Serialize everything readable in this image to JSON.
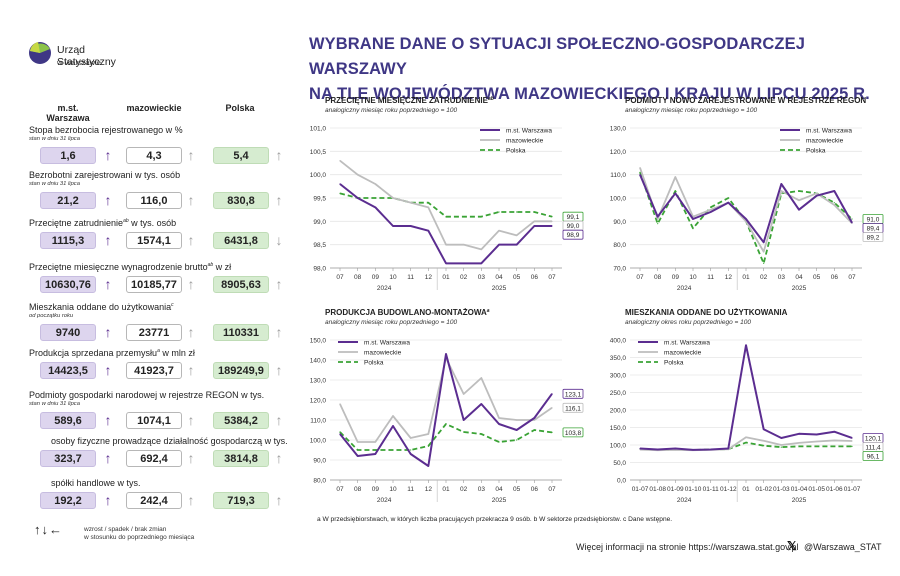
{
  "header": {
    "org_line1": "Urząd Statystyczny",
    "org_line2": "w Warszawie",
    "title_line1": "WYBRANE DANE O SYTUACJI SPOŁECZNO-GOSPODARCZEJ WARSZAWY",
    "title_line2": "NA TLE WOJEWÓDZTWA MAZOWIECKIEGO I KRAJU W LIPCU 2025 R."
  },
  "table": {
    "columns": [
      "m.st. Warszawa",
      "mazowieckie",
      "Polska"
    ],
    "rows": [
      {
        "label": "Stopa bezrobocia rejestrowanego w %",
        "sub": "stan w dniu 31 lipca",
        "wa": "1,6",
        "maz": "4,3",
        "pl": "5,4",
        "arrows": [
          "up",
          "up",
          "up"
        ]
      },
      {
        "label": "Bezrobotni zarejestrowani w tys. osób",
        "sub": "stan w dniu 31 lipca",
        "wa": "21,2",
        "maz": "116,0",
        "pl": "830,8",
        "arrows": [
          "up",
          "up",
          "up"
        ]
      },
      {
        "label": "Przeciętne zatrudnienie",
        "sup": "ab",
        "label_tail": " w tys. osób",
        "sub": "",
        "wa": "1115,3",
        "maz": "1574,1",
        "pl": "6431,8",
        "arrows": [
          "up",
          "up",
          "down"
        ]
      },
      {
        "label": "Przeciętne miesięczne wynagrodzenie brutto",
        "sup": "ab",
        "label_tail": " w zł",
        "sub": "",
        "wa": "10630,76",
        "maz": "10185,77",
        "pl": "8905,63",
        "arrows": [
          "up",
          "up",
          "up"
        ]
      },
      {
        "label": "Mieszkania oddane do użytkowania",
        "sup": "c",
        "label_tail": "",
        "sub": "od początku roku",
        "wa": "9740",
        "maz": "23771",
        "pl": "110331",
        "arrows": [
          "up",
          "up",
          "up"
        ]
      },
      {
        "label": "Produkcja sprzedana przemysłu",
        "sup": "a",
        "label_tail": " w mln zł",
        "sub": "",
        "wa": "14423,5",
        "maz": "41923,7",
        "pl": "189249,9",
        "arrows": [
          "up",
          "up",
          "up"
        ]
      },
      {
        "label": "Podmioty gospodarki narodowej w rejestrze REGON w tys.",
        "sub": "stan w dniu 31 lipca",
        "wa": "589,6",
        "maz": "1074,1",
        "pl": "5384,2",
        "arrows": [
          "up",
          "up",
          "up"
        ]
      },
      {
        "label": "osoby fizyczne prowadzące działalność gospodarczą w tys.",
        "sub": "",
        "wa": "323,7",
        "maz": "692,4",
        "pl": "3814,8",
        "arrows": [
          "up",
          "up",
          "up"
        ]
      },
      {
        "label": "spółki handlowe w tys.",
        "sub": "",
        "wa": "192,2",
        "maz": "242,4",
        "pl": "719,3",
        "arrows": [
          "up",
          "up",
          "up"
        ]
      }
    ],
    "legend_arrows": "↑↓←",
    "legend_line1": "wzrost / spadek / brak zmian",
    "legend_line2": "w stosunku do poprzedniego miesiąca"
  },
  "footnote": "a W przedsiębiorstwach, w których liczba pracujących przekracza 9 osób.   b W sektorze przedsiębiorstw.   c Dane wstępne.",
  "footer": {
    "more_info": "Więcej informacji na stronie https://warszawa.stat.gov.pl",
    "x_icon": "x-logo",
    "x_handle": "@Warszawa_STAT"
  },
  "colors": {
    "warszawa": "#5b2d90",
    "mazowieckie": "#bdbdbd",
    "polska": "#3aa335",
    "title": "#3f3785"
  },
  "chart_data": [
    {
      "type": "line",
      "title": "PRZECIĘTNE MIESIĘCZNE ZATRUDNIENIE",
      "title_sup": "ab",
      "subtitle": "analogiczny miesiąc roku poprzedniego = 100",
      "x": [
        "07",
        "08",
        "09",
        "10",
        "11",
        "12",
        "01",
        "02",
        "03",
        "04",
        "05",
        "06",
        "07"
      ],
      "year_labels": [
        "2024",
        "2025"
      ],
      "ylim": [
        98.0,
        101.0
      ],
      "yticks": [
        "98,0",
        "98,5",
        "99,0",
        "99,5",
        "100,0",
        "100,5",
        "101,0"
      ],
      "ytick_values": [
        98.0,
        98.5,
        99.0,
        99.5,
        100.0,
        100.5,
        101.0
      ],
      "legend_position": "top-right",
      "series": [
        {
          "name": "m.st. Warszawa",
          "values": [
            99.8,
            99.5,
            99.3,
            98.9,
            98.9,
            98.8,
            98.1,
            98.1,
            98.1,
            98.5,
            98.5,
            98.9,
            98.9
          ]
        },
        {
          "name": "mazowieckie",
          "values": [
            100.3,
            100.0,
            99.8,
            99.5,
            99.4,
            99.3,
            98.5,
            98.5,
            98.4,
            98.8,
            98.7,
            99.0,
            99.0
          ]
        },
        {
          "name": "Polska",
          "values": [
            99.6,
            99.5,
            99.5,
            99.5,
            99.4,
            99.4,
            99.1,
            99.1,
            99.1,
            99.2,
            99.2,
            99.2,
            99.1
          ]
        }
      ],
      "end_labels": [
        "99,1",
        "99,0",
        "98,9"
      ]
    },
    {
      "type": "line",
      "title": "PODMIOTY NOWO ZAREJESTROWANE W REJESTRZE REGON",
      "title_sup": "",
      "subtitle": "analogiczny miesiąc roku poprzedniego = 100",
      "x": [
        "07",
        "08",
        "09",
        "10",
        "11",
        "12",
        "01",
        "02",
        "03",
        "04",
        "05",
        "06",
        "07"
      ],
      "year_labels": [
        "2024",
        "2025"
      ],
      "ylim": [
        70.0,
        130.0
      ],
      "yticks": [
        "70,0",
        "80,0",
        "90,0",
        "100,0",
        "110,0",
        "120,0",
        "130,0"
      ],
      "ytick_values": [
        70,
        80,
        90,
        100,
        110,
        120,
        130
      ],
      "legend_position": "top-right",
      "series": [
        {
          "name": "m.st. Warszawa",
          "values": [
            110.0,
            92.0,
            102.0,
            91.0,
            94.0,
            98.0,
            91.0,
            81.0,
            106.0,
            95.0,
            101.0,
            103.0,
            89.4
          ]
        },
        {
          "name": "mazowieckie",
          "values": [
            113.0,
            91.0,
            109.0,
            92.0,
            95.0,
            98.0,
            90.0,
            77.0,
            103.0,
            99.0,
            102.0,
            97.0,
            89.2
          ]
        },
        {
          "name": "Polska",
          "values": [
            111.0,
            89.0,
            103.0,
            87.0,
            96.0,
            100.0,
            90.0,
            72.0,
            102.0,
            103.0,
            102.0,
            98.0,
            91.0
          ]
        }
      ],
      "end_labels": [
        "91,0",
        "89,4",
        "89,2"
      ]
    },
    {
      "type": "line",
      "title": "PRODUKCJA BUDOWLANO-MONTAŻOWA",
      "title_sup": "a",
      "subtitle": "analogiczny miesiąc roku poprzedniego = 100",
      "x": [
        "07",
        "08",
        "09",
        "10",
        "11",
        "12",
        "01",
        "02",
        "03",
        "04",
        "05",
        "06",
        "07"
      ],
      "year_labels": [
        "2024",
        "2025"
      ],
      "ylim": [
        80.0,
        150.0
      ],
      "yticks": [
        "80,0",
        "90,0",
        "100,0",
        "110,0",
        "120,0",
        "130,0",
        "140,0",
        "150,0"
      ],
      "ytick_values": [
        80,
        90,
        100,
        110,
        120,
        130,
        140,
        150
      ],
      "legend_position": "top-left",
      "series": [
        {
          "name": "m.st. Warszawa",
          "values": [
            103.0,
            92.0,
            93.0,
            107.0,
            93.0,
            87.0,
            143.0,
            110.0,
            118.0,
            108.0,
            105.0,
            111.0,
            123.1
          ]
        },
        {
          "name": "mazowieckie",
          "values": [
            118.0,
            99.0,
            99.0,
            112.0,
            101.0,
            103.0,
            141.0,
            123.0,
            131.0,
            111.0,
            110.0,
            110.0,
            116.1
          ]
        },
        {
          "name": "Polska",
          "values": [
            104.0,
            95.0,
            95.0,
            95.0,
            95.0,
            97.0,
            108.0,
            104.0,
            103.0,
            99.0,
            100.0,
            105.0,
            103.8
          ]
        }
      ],
      "end_labels": [
        "123,1",
        "116,1",
        "103,8"
      ]
    },
    {
      "type": "line",
      "title": "MIESZKANIA ODDANE DO UŻYTKOWANIA",
      "title_sup": "",
      "subtitle": "analogiczny okres roku poprzedniego = 100",
      "x": [
        "01-07",
        "01-08",
        "01-09",
        "01-10",
        "01-11",
        "01-12",
        "01",
        "01-02",
        "01-03",
        "01-04",
        "01-05",
        "01-06",
        "01-07"
      ],
      "year_labels": [
        "2024",
        "2025"
      ],
      "ylim": [
        0.0,
        400.0
      ],
      "yticks": [
        "0,0",
        "50,0",
        "100,0",
        "150,0",
        "200,0",
        "250,0",
        "300,0",
        "350,0",
        "400,0"
      ],
      "ytick_values": [
        0,
        50,
        100,
        150,
        200,
        250,
        300,
        350,
        400
      ],
      "legend_position": "top-left",
      "series": [
        {
          "name": "m.st. Warszawa",
          "values": [
            90.0,
            87.0,
            90.0,
            86.0,
            87.0,
            90.0,
            385.0,
            145.0,
            120.0,
            132.0,
            130.0,
            138.0,
            120.1
          ]
        },
        {
          "name": "mazowieckie",
          "values": [
            87.0,
            85.0,
            86.0,
            85.0,
            86.0,
            88.0,
            122.0,
            112.0,
            100.0,
            106.0,
            110.0,
            113.0,
            111.4
          ]
        },
        {
          "name": "Polska",
          "values": [
            88.0,
            86.0,
            87.0,
            86.0,
            87.0,
            88.0,
            107.0,
            98.0,
            94.0,
            96.0,
            96.0,
            96.0,
            96.1
          ]
        }
      ],
      "end_labels": [
        "120,1",
        "111,4",
        "96,1"
      ]
    }
  ]
}
